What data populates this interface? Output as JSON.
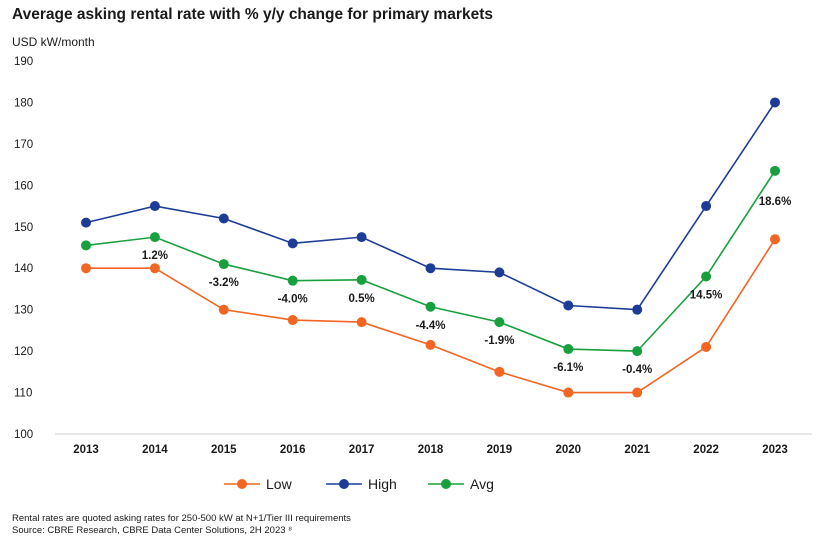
{
  "chart_data": {
    "type": "line",
    "title": "Average asking rental rate with % y/y change for primary markets",
    "ylabel": "USD kW/month",
    "xlabel": "",
    "categories": [
      "2013",
      "2014",
      "2015",
      "2016",
      "2017",
      "2018",
      "2019",
      "2020",
      "2021",
      "2022",
      "2023"
    ],
    "ylim": [
      100,
      190
    ],
    "yticks": [
      100,
      110,
      120,
      130,
      140,
      150,
      160,
      170,
      180,
      190
    ],
    "series": [
      {
        "name": "Low",
        "color": "#f26522",
        "values": [
          140,
          140,
          130,
          127.5,
          127,
          121.5,
          115,
          110,
          110,
          121,
          147
        ]
      },
      {
        "name": "High",
        "color": "#1d3c96",
        "values": [
          151,
          155,
          152,
          146,
          147.5,
          140,
          139,
          131,
          130,
          155,
          180
        ]
      },
      {
        "name": "Avg",
        "color": "#18a03e",
        "values": [
          145.5,
          147.5,
          141,
          137,
          137.2,
          130.7,
          127,
          120.5,
          120,
          138,
          163.5
        ]
      }
    ],
    "annotations": [
      {
        "category": "2014",
        "text": "1.2%"
      },
      {
        "category": "2015",
        "text": "-3.2%"
      },
      {
        "category": "2016",
        "text": "-4.0%"
      },
      {
        "category": "2017",
        "text": "0.5%"
      },
      {
        "category": "2018",
        "text": "-4.4%"
      },
      {
        "category": "2019",
        "text": "-1.9%"
      },
      {
        "category": "2020",
        "text": "-6.1%"
      },
      {
        "category": "2021",
        "text": "-0.4%"
      },
      {
        "category": "2022",
        "text": "14.5%"
      },
      {
        "category": "2023",
        "text": "18.6%"
      }
    ],
    "grid": false,
    "legend_position": "bottom"
  },
  "footnote": {
    "line1": "Rental rates are quoted asking rates for 250-500 kW at N+1/Tier III requirements",
    "line2": "Source: CBRE Research, CBRE Data Center Solutions, 2H 2023 ⁸"
  }
}
